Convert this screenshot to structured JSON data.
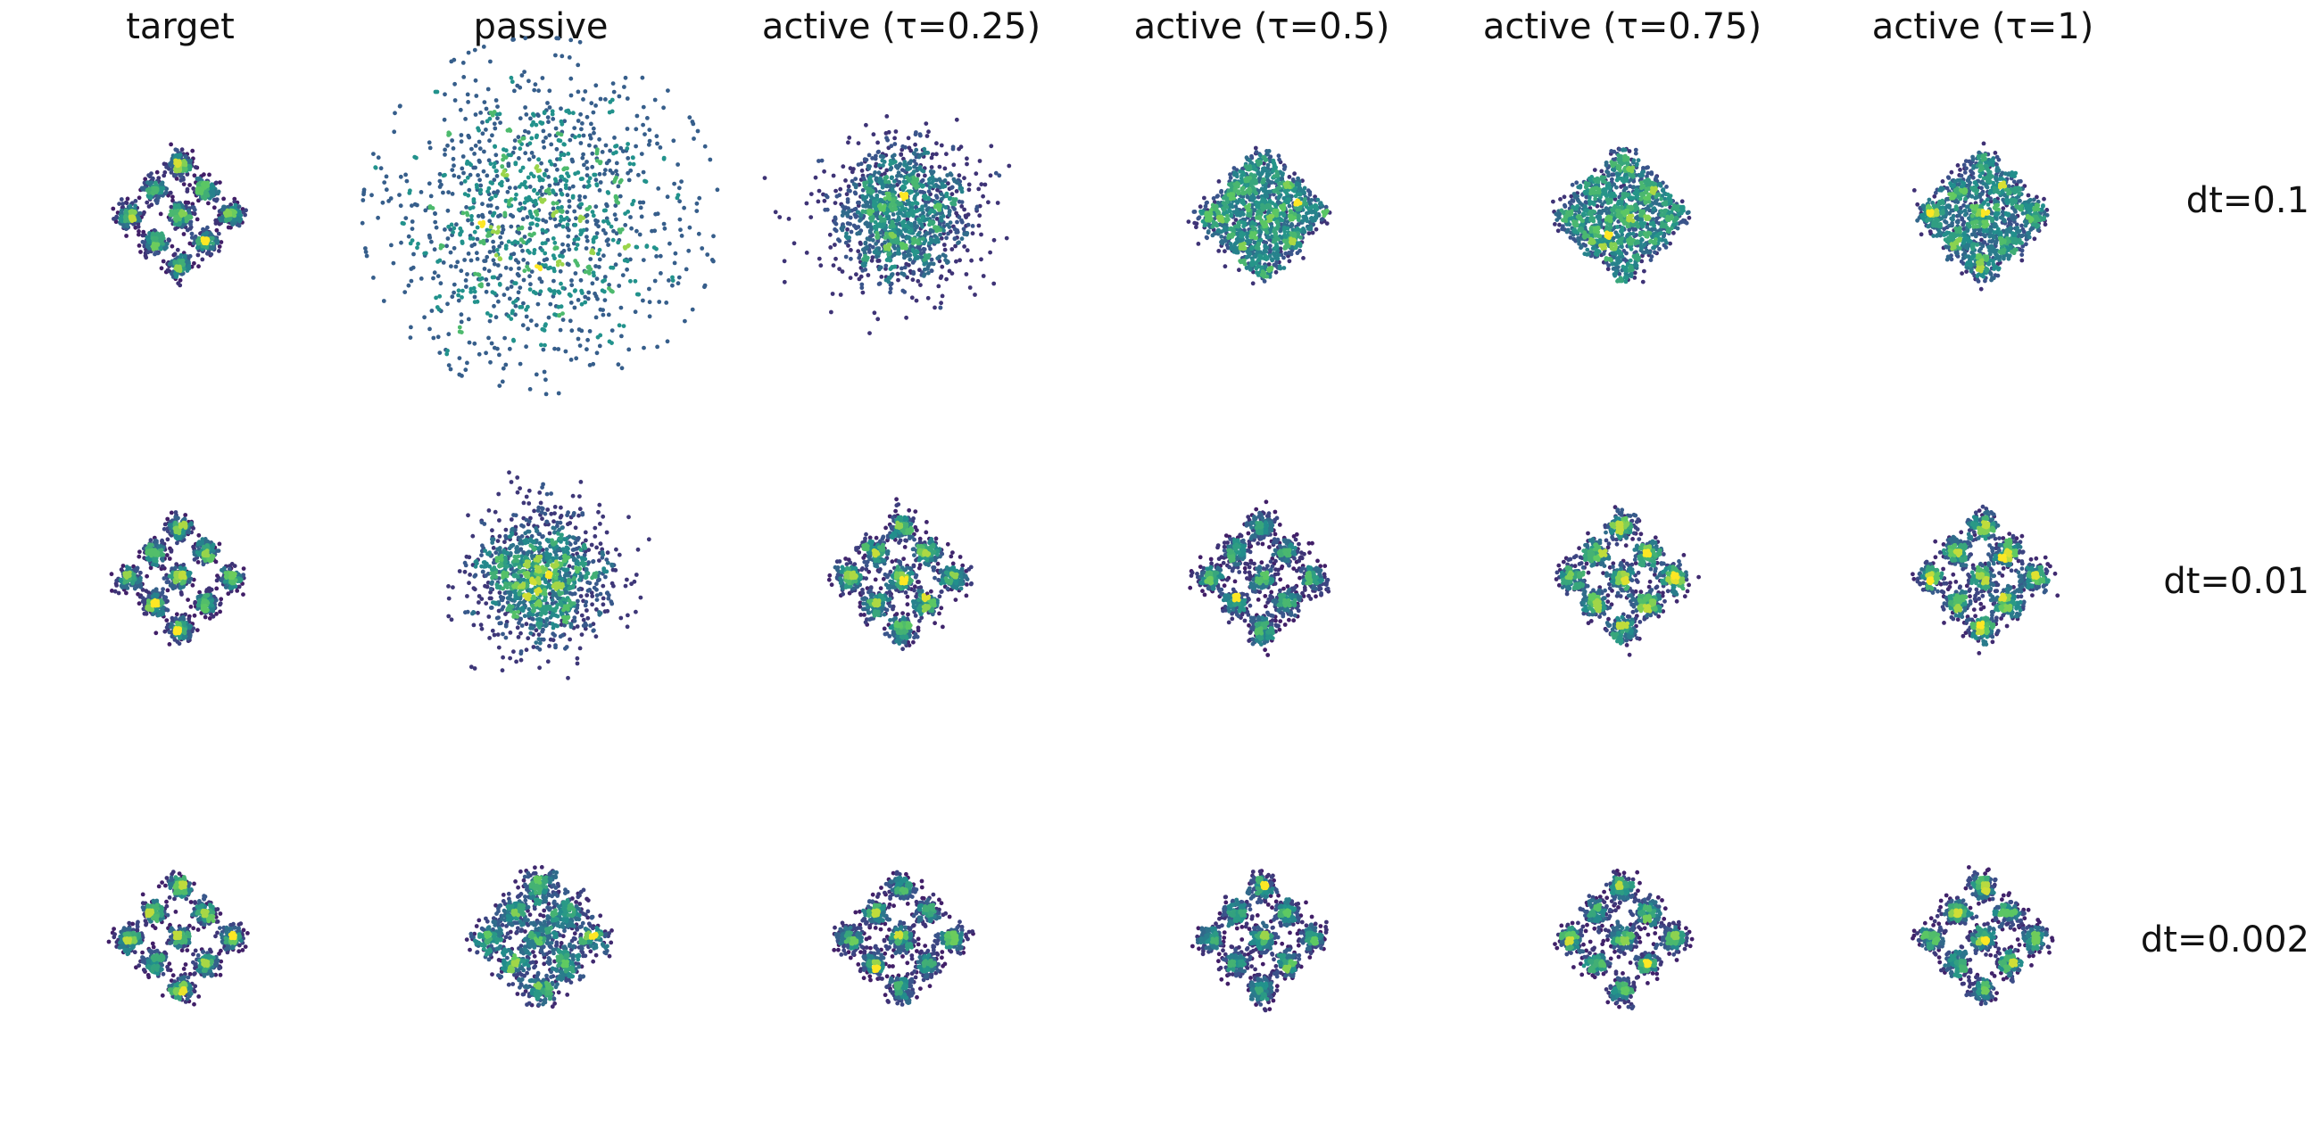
{
  "chart_data": {
    "type": "scatter",
    "layout": "grid of 3 rows x 6 columns of 2-D sample density scatter panels",
    "columns": [
      "target",
      "passive",
      "active (τ=0.25)",
      "active (τ=0.5)",
      "active (τ=0.75)",
      "active (τ=1)"
    ],
    "rows": [
      "dt=0.1",
      "dt=0.01",
      "dt=0.002"
    ],
    "colormap": [
      "#440154",
      "#3b528b",
      "#21918c",
      "#5ec962",
      "#fde725"
    ],
    "axes_visible": false,
    "target_distribution": "3x3 grid of Gaussian modes rotated 45 degrees (diamond layout)",
    "panels": [
      {
        "row": "dt=0.1",
        "column": "target",
        "shape": "modes",
        "spread": 0.0,
        "mode_strength": 1.0
      },
      {
        "row": "dt=0.1",
        "column": "passive",
        "shape": "blob",
        "spread": 2.7,
        "mode_strength": 0.0
      },
      {
        "row": "dt=0.1",
        "column": "active (τ=0.25)",
        "shape": "blob",
        "spread": 1.35,
        "mode_strength": 0.0
      },
      {
        "row": "dt=0.1",
        "column": "active (τ=0.5)",
        "shape": "diamond",
        "spread": 0.55,
        "mode_strength": 0.15
      },
      {
        "row": "dt=0.1",
        "column": "active (τ=0.75)",
        "shape": "diamond",
        "spread": 0.5,
        "mode_strength": 0.3
      },
      {
        "row": "dt=0.1",
        "column": "active (τ=1)",
        "shape": "diamond",
        "spread": 0.45,
        "mode_strength": 0.5
      },
      {
        "row": "dt=0.01",
        "column": "target",
        "shape": "modes",
        "spread": 0.0,
        "mode_strength": 1.0
      },
      {
        "row": "dt=0.01",
        "column": "passive",
        "shape": "blob",
        "spread": 1.25,
        "mode_strength": 0.0
      },
      {
        "row": "dt=0.01",
        "column": "active (τ=0.25)",
        "shape": "modes",
        "spread": 0.1,
        "mode_strength": 1.0
      },
      {
        "row": "dt=0.01",
        "column": "active (τ=0.5)",
        "shape": "modes",
        "spread": 0.1,
        "mode_strength": 1.0
      },
      {
        "row": "dt=0.01",
        "column": "active (τ=0.75)",
        "shape": "modes",
        "spread": 0.1,
        "mode_strength": 1.0
      },
      {
        "row": "dt=0.01",
        "column": "active (τ=1)",
        "shape": "modes",
        "spread": 0.1,
        "mode_strength": 1.0
      },
      {
        "row": "dt=0.002",
        "column": "target",
        "shape": "modes",
        "spread": 0.0,
        "mode_strength": 1.0
      },
      {
        "row": "dt=0.002",
        "column": "passive",
        "shape": "modes",
        "spread": 0.25,
        "mode_strength": 0.7
      },
      {
        "row": "dt=0.002",
        "column": "active (τ=0.25)",
        "shape": "modes",
        "spread": 0.05,
        "mode_strength": 1.0
      },
      {
        "row": "dt=0.002",
        "column": "active (τ=0.5)",
        "shape": "modes",
        "spread": 0.05,
        "mode_strength": 1.0
      },
      {
        "row": "dt=0.002",
        "column": "active (τ=0.75)",
        "shape": "modes",
        "spread": 0.05,
        "mode_strength": 1.0
      },
      {
        "row": "dt=0.002",
        "column": "active (τ=1)",
        "shape": "modes",
        "spread": 0.05,
        "mode_strength": 1.0
      }
    ]
  }
}
